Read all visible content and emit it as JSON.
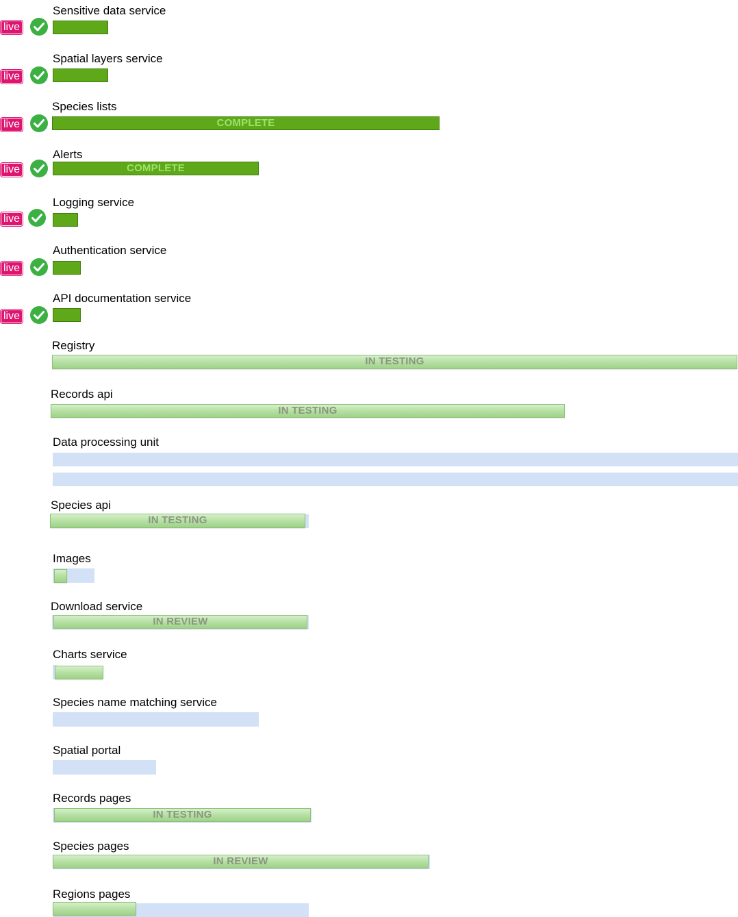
{
  "live_badge": "live",
  "services": [
    {
      "name": "Sensitive data service",
      "live": true,
      "status": ""
    },
    {
      "name": "Spatial layers service",
      "live": true,
      "status": ""
    },
    {
      "name": "Species lists",
      "live": true,
      "status": "COMPLETE"
    },
    {
      "name": "Alerts",
      "live": true,
      "status": "COMPLETE"
    },
    {
      "name": "Logging service",
      "live": true,
      "status": ""
    },
    {
      "name": "Authentication service",
      "live": true,
      "status": ""
    },
    {
      "name": "API documentation service",
      "live": true,
      "status": ""
    },
    {
      "name": "Registry",
      "live": false,
      "status": "IN TESTING"
    },
    {
      "name": "Records api",
      "live": false,
      "status": "IN TESTING"
    },
    {
      "name": "Data processing unit",
      "live": false,
      "status": ""
    },
    {
      "name": "Species api",
      "live": false,
      "status": "IN TESTING"
    },
    {
      "name": "Images",
      "live": false,
      "status": ""
    },
    {
      "name": "Download service",
      "live": false,
      "status": "IN REVIEW"
    },
    {
      "name": "Charts service",
      "live": false,
      "status": ""
    },
    {
      "name": "Species name matching service",
      "live": false,
      "status": ""
    },
    {
      "name": "Spatial portal",
      "live": false,
      "status": ""
    },
    {
      "name": "Records pages",
      "live": false,
      "status": "IN TESTING"
    },
    {
      "name": "Species pages",
      "live": false,
      "status": "IN REVIEW"
    },
    {
      "name": "Regions pages",
      "live": false,
      "status": ""
    }
  ],
  "colors": {
    "live_badge": "#dd1570",
    "check": "#3cb043",
    "complete_bar": "#5fa81a",
    "progress_bar": "#b3dfa0",
    "remaining_bar": "#d3e1f7"
  }
}
